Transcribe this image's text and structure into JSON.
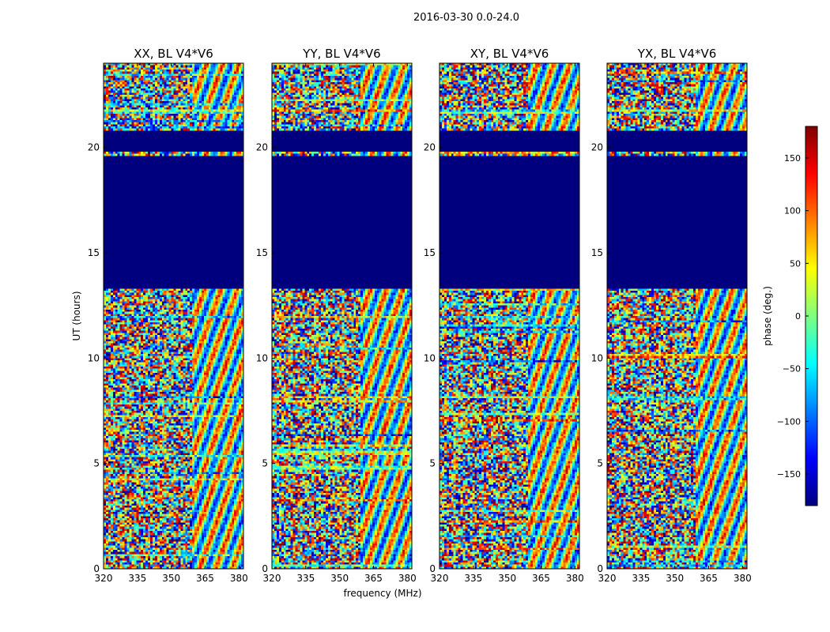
{
  "figure": {
    "suptitle": "2016-03-30 0.0-24.0"
  },
  "chart_data": {
    "type": "heatmap",
    "panels": [
      {
        "title": "XX, BL V4*V6",
        "polarization": "XX"
      },
      {
        "title": "YY, BL V4*V6",
        "polarization": "YY"
      },
      {
        "title": "XY, BL V4*V6",
        "polarization": "XY"
      },
      {
        "title": "YX, BL V4*V6",
        "polarization": "YX"
      }
    ],
    "xlabel": "frequency (MHz)",
    "ylabel": "UT (hours)",
    "xlim": [
      320,
      382
    ],
    "ylim": [
      0,
      24
    ],
    "xticks": [
      320,
      335,
      350,
      365,
      380
    ],
    "xtick_labels": [
      "320",
      "335",
      "350",
      "365",
      "380"
    ],
    "yticks": [
      0,
      5,
      10,
      15,
      20
    ],
    "ytick_labels": [
      "0",
      "5",
      "10",
      "15",
      "20"
    ],
    "colorbar": {
      "label": "phase (deg.)",
      "range": [
        -180,
        180
      ],
      "ticks": [
        150,
        100,
        50,
        0,
        -50,
        -100,
        -150
      ],
      "tick_labels": [
        "150",
        "100",
        "50",
        "0",
        "−50",
        "−100",
        "−150"
      ],
      "colormap": [
        "#00007f",
        "#0000ff",
        "#007fff",
        "#00ffff",
        "#7fff7f",
        "#ffff00",
        "#ff7f00",
        "#ff0000",
        "#7f0000"
      ]
    },
    "flagged_intervals_hours": [
      [
        19.5,
        19.6
      ],
      [
        19.8,
        20.8
      ],
      [
        13.3,
        19.5
      ]
    ],
    "flagged_value_deg": -180
  }
}
